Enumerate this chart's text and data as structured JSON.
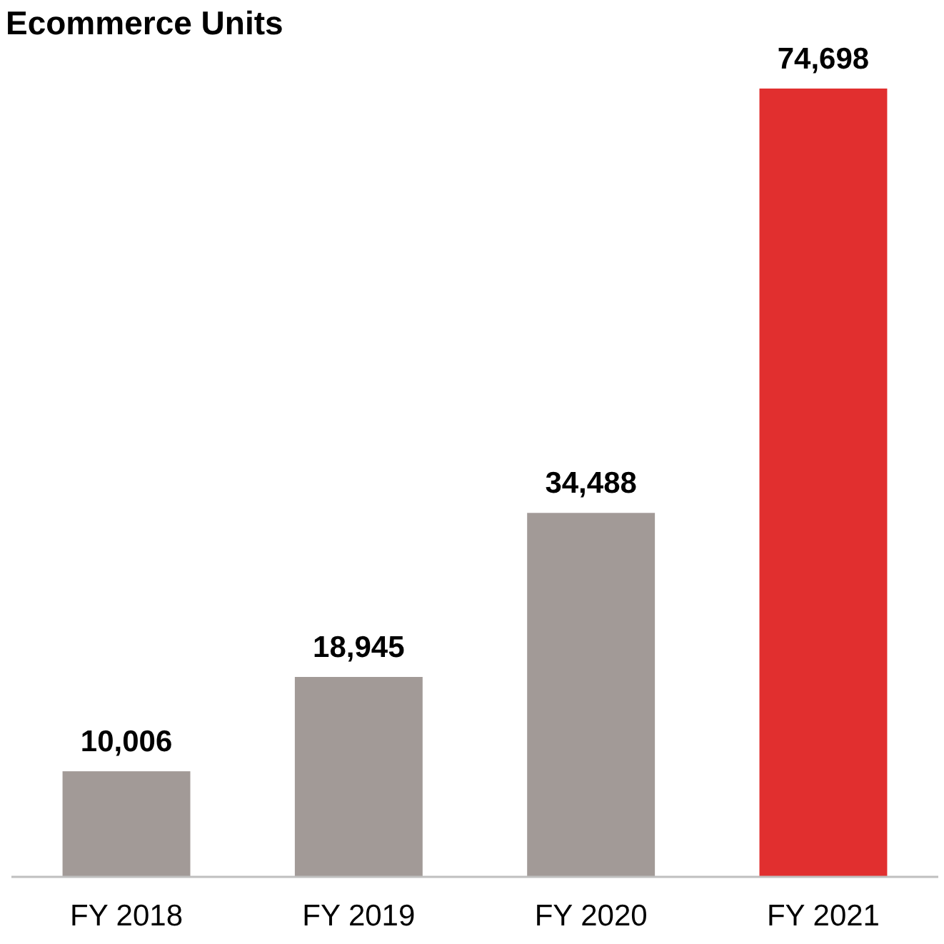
{
  "chart_data": {
    "type": "bar",
    "title": "Ecommerce Units",
    "categories": [
      "FY 2018",
      "FY 2019",
      "FY 2020",
      "FY 2021"
    ],
    "values": [
      10006,
      18945,
      34488,
      74698
    ],
    "value_labels": [
      "10,006",
      "18,945",
      "34,488",
      "74,698"
    ],
    "colors": [
      "#a29a97",
      "#a29a97",
      "#a29a97",
      "#e12f2f"
    ]
  }
}
